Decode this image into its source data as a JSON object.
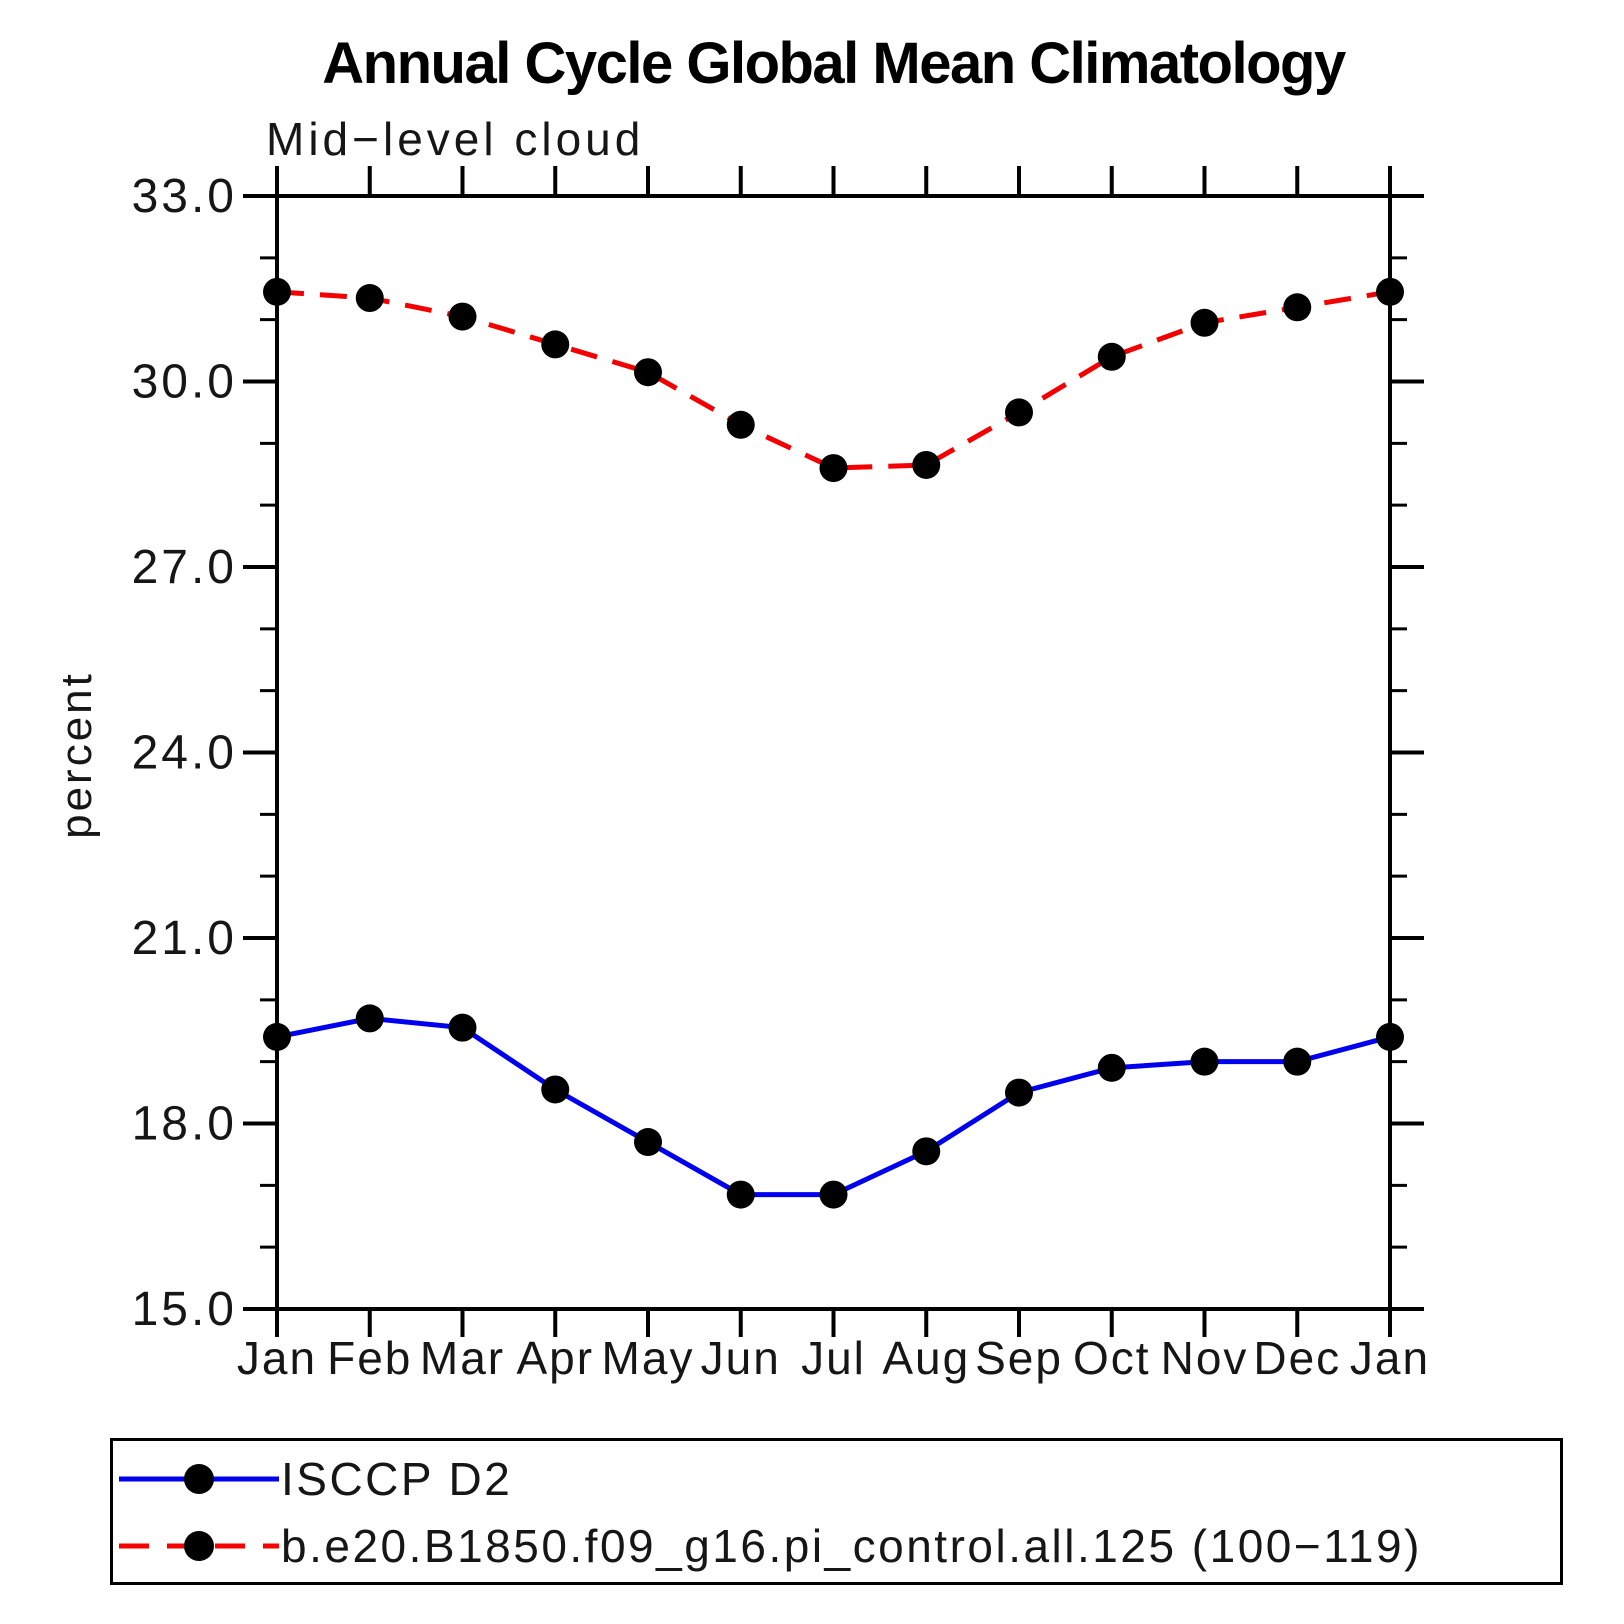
{
  "chart_data": {
    "type": "line",
    "title": "Annual Cycle Global Mean Climatology",
    "subtitle": "Mid−level cloud",
    "ylabel": "percent",
    "x_categories": [
      "Jan",
      "Feb",
      "Mar",
      "Apr",
      "May",
      "Jun",
      "Jul",
      "Aug",
      "Sep",
      "Oct",
      "Nov",
      "Dec",
      "Jan"
    ],
    "series": [
      {
        "name": "ISCCP D2",
        "color": "#0000ee",
        "line_style": "solid",
        "marker": "filled-circle",
        "marker_color": "#000000",
        "values": [
          19.4,
          19.7,
          19.55,
          18.55,
          17.7,
          16.85,
          16.85,
          17.55,
          18.5,
          18.9,
          19.0,
          19.0,
          19.4
        ]
      },
      {
        "name": "b.e20.B1850.f09_g16.pi_control.all.125 (100−119)",
        "color": "#f40000",
        "line_style": "dashed",
        "marker": "filled-circle",
        "marker_color": "#000000",
        "values": [
          31.45,
          31.35,
          31.05,
          30.6,
          30.15,
          29.3,
          28.6,
          28.65,
          29.5,
          30.4,
          30.95,
          31.2,
          31.45
        ]
      }
    ],
    "y_axis": {
      "min": 15.0,
      "max": 33.0,
      "major_tick_interval": 3.0,
      "minor_tick_interval": 1.0,
      "major_tick_labels": [
        "33.0",
        "30.0",
        "27.0",
        "24.0",
        "21.0",
        "18.0",
        "15.0"
      ]
    },
    "grid": false,
    "legend_position": "bottom-left"
  }
}
